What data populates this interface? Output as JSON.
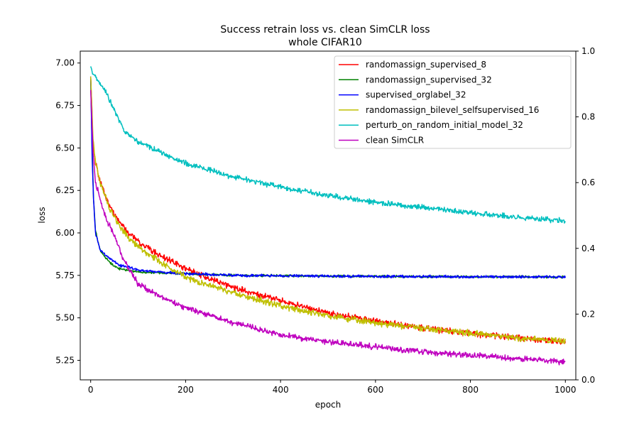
{
  "chart_data": {
    "type": "line",
    "title": "Success retrain loss vs. clean SimCLR loss",
    "subtitle": "whole CIFAR10",
    "xlabel": "epoch",
    "ylabel": "loss",
    "xlim": [
      -22,
      1022
    ],
    "ylim": [
      5.135,
      7.07
    ],
    "y2lim": [
      0.0,
      1.0
    ],
    "grid": false,
    "legend_position": "top-right",
    "x_ticks": [
      0,
      200,
      400,
      600,
      800,
      1000
    ],
    "y_ticks": [
      5.25,
      5.5,
      5.75,
      6.0,
      6.25,
      6.5,
      6.75,
      7.0
    ],
    "y2_ticks": [
      0.0,
      0.2,
      0.4,
      0.6,
      0.8,
      1.0
    ],
    "x_tick_labels": [
      "0",
      "200",
      "400",
      "600",
      "800",
      "1000"
    ],
    "y_tick_labels": [
      "5.25",
      "5.50",
      "5.75",
      "6.00",
      "6.25",
      "6.50",
      "6.75",
      "7.00"
    ],
    "y2_tick_labels": [
      "0.0",
      "0.2",
      "0.4",
      "0.6",
      "0.8",
      "1.0"
    ],
    "series": [
      {
        "name": "randomassign_supervised_8",
        "color": "#ff0000",
        "noise": 0.014,
        "x": [
          0,
          5,
          10,
          20,
          40,
          60,
          80,
          100,
          150,
          200,
          250,
          300,
          400,
          500,
          600,
          700,
          800,
          900,
          1000
        ],
        "y": [
          6.92,
          6.52,
          6.42,
          6.3,
          6.16,
          6.07,
          6.0,
          5.95,
          5.86,
          5.79,
          5.73,
          5.68,
          5.6,
          5.53,
          5.48,
          5.44,
          5.41,
          5.38,
          5.36
        ]
      },
      {
        "name": "randomassign_supervised_32",
        "color": "#008000",
        "noise": 0.005,
        "x": [
          0,
          3,
          6,
          10,
          15,
          20,
          30,
          40,
          50,
          60,
          80,
          100,
          150,
          200,
          300,
          500,
          1000
        ],
        "y": [
          6.92,
          6.5,
          6.2,
          6.02,
          5.95,
          5.9,
          5.86,
          5.83,
          5.8,
          5.79,
          5.78,
          5.77,
          5.765,
          5.76,
          5.75,
          5.745,
          5.74
        ]
      },
      {
        "name": "supervised_orglabel_32",
        "color": "#0000ff",
        "noise": 0.006,
        "x": [
          0,
          3,
          6,
          10,
          15,
          20,
          30,
          40,
          50,
          60,
          80,
          100,
          150,
          200,
          300,
          500,
          1000
        ],
        "y": [
          6.92,
          6.45,
          6.2,
          6.0,
          5.95,
          5.9,
          5.87,
          5.85,
          5.83,
          5.81,
          5.8,
          5.78,
          5.77,
          5.76,
          5.75,
          5.745,
          5.74
        ]
      },
      {
        "name": "randomassign_bilevel_selfsupervised_16",
        "color": "#bfbf00",
        "noise": 0.014,
        "x": [
          0,
          5,
          10,
          20,
          40,
          60,
          80,
          100,
          150,
          200,
          250,
          300,
          400,
          500,
          600,
          700,
          800,
          900,
          1000
        ],
        "y": [
          6.92,
          6.55,
          6.42,
          6.3,
          6.14,
          6.04,
          5.97,
          5.92,
          5.82,
          5.74,
          5.69,
          5.65,
          5.57,
          5.51,
          5.47,
          5.44,
          5.41,
          5.38,
          5.36
        ]
      },
      {
        "name": "perturb_on_random_initial_model_32",
        "color": "#00bfbf",
        "noise": 0.012,
        "x": [
          0,
          5,
          15,
          30,
          50,
          70,
          100,
          150,
          200,
          250,
          300,
          400,
          500,
          600,
          700,
          800,
          900,
          1000
        ],
        "y": [
          6.98,
          6.94,
          6.9,
          6.84,
          6.72,
          6.6,
          6.54,
          6.47,
          6.41,
          6.37,
          6.33,
          6.27,
          6.22,
          6.18,
          6.15,
          6.12,
          6.09,
          6.07
        ]
      },
      {
        "name": "clean SimCLR",
        "color": "#bf00bf",
        "noise": 0.013,
        "x": [
          0,
          5,
          10,
          20,
          30,
          50,
          70,
          100,
          150,
          200,
          300,
          400,
          500,
          600,
          700,
          800,
          900,
          1000
        ],
        "y": [
          6.84,
          6.48,
          6.3,
          6.2,
          6.1,
          5.98,
          5.84,
          5.7,
          5.62,
          5.56,
          5.47,
          5.4,
          5.36,
          5.33,
          5.3,
          5.28,
          5.26,
          5.24
        ]
      }
    ]
  }
}
